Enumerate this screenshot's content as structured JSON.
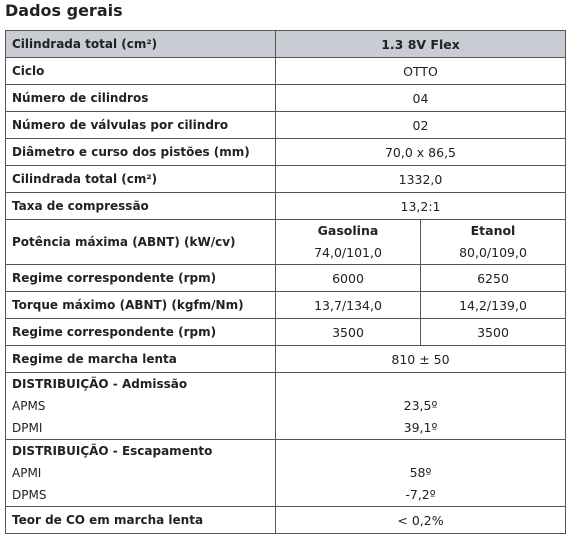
{
  "title": "Dados gerais",
  "table": {
    "header": [
      "Cilindrada total (cm²)",
      "1.3 8V Flex"
    ],
    "rows": [
      {
        "label": "Ciclo",
        "value": "OTTO"
      },
      {
        "label": "Número de cilindros",
        "value": "04"
      },
      {
        "label": "Número de válvulas por cilindro",
        "value": "02"
      },
      {
        "label": "Diâmetro e curso dos pistões (mm)",
        "value": "70,0 x 86,5"
      },
      {
        "label": "Cilindrada total (cm²)",
        "value": "1332,0"
      },
      {
        "label": "Taxa de compressão",
        "value": "13,2:1"
      },
      {
        "label": "Potência máxima (ABNT) (kW/cv)",
        "sub_headers": [
          "Gasolina",
          "Etanol"
        ],
        "values": [
          "74,0/101,0",
          "80,0/109,0"
        ]
      },
      {
        "label": "Regime correspondente (rpm)",
        "values": [
          "6000",
          "6250"
        ]
      },
      {
        "label": "Torque máximo (ABNT) (kgfm/Nm)",
        "values": [
          "13,7/134,0",
          "14,2/139,0"
        ]
      },
      {
        "label": "Regime correspondente (rpm)",
        "values": [
          "3500",
          "3500"
        ]
      },
      {
        "label": "Regime de marcha lenta",
        "value": "810 ± 50"
      },
      {
        "label": "DISTRIBUIÇÃO - Admissão",
        "items": [
          {
            "label": "APMS",
            "value": "23,5º"
          },
          {
            "label": "DPMI",
            "value": "39,1º"
          }
        ]
      },
      {
        "label": "DISTRIBUIÇÃO - Escapamento",
        "items": [
          {
            "label": "APMI",
            "value": "58º"
          },
          {
            "label": "DPMS",
            "value": "-7,2º"
          }
        ]
      },
      {
        "label": "Teor de CO em marcha lenta",
        "value": "< 0,2%"
      }
    ]
  }
}
